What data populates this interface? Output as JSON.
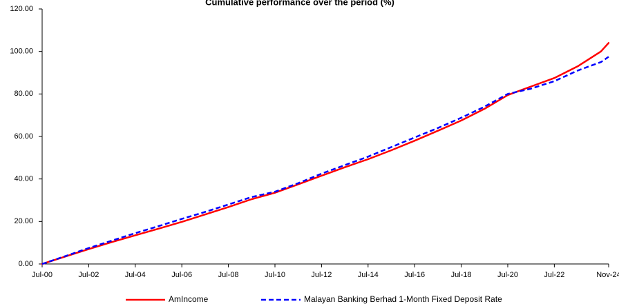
{
  "chart_data": {
    "type": "line",
    "title": "Cumulative performance over the period (%)",
    "xlabel": "",
    "ylabel": "",
    "x_tick_labels": [
      "Jul-00",
      "Jul-02",
      "Jul-04",
      "Jul-06",
      "Jul-08",
      "Jul-10",
      "Jul-12",
      "Jul-14",
      "Jul-16",
      "Jul-18",
      "Jul-20",
      "Jul-22",
      "Nov-24"
    ],
    "y_tick_labels": [
      "0.00",
      "20.00",
      "40.00",
      "60.00",
      "80.00",
      "100.00",
      "120.00"
    ],
    "y_ticks": [
      0,
      20,
      40,
      60,
      80,
      100,
      120
    ],
    "ylim": [
      0,
      120
    ],
    "xlim": [
      "Jul-00",
      "Nov-24"
    ],
    "grid": false,
    "legend_position": "bottom",
    "x": [
      "Jul-00",
      "Jul-01",
      "Jul-02",
      "Jul-03",
      "Jul-04",
      "Jul-05",
      "Jul-06",
      "Jul-07",
      "Jul-08",
      "Jul-09",
      "Jul-10",
      "Jul-11",
      "Jul-12",
      "Jul-13",
      "Jul-14",
      "Jul-15",
      "Jul-16",
      "Jul-17",
      "Jul-18",
      "Jul-19",
      "Jul-20",
      "Jul-21",
      "Jul-22",
      "Jul-23",
      "Jul-24",
      "Nov-24"
    ],
    "series": [
      {
        "name": "AmIncome",
        "color": "#ff0000",
        "line_style": "solid",
        "values": [
          0,
          3.5,
          7.0,
          10.3,
          13.5,
          16.6,
          19.8,
          23.3,
          26.8,
          30.5,
          33.5,
          37.5,
          41.5,
          45.5,
          49.3,
          53.5,
          58.0,
          62.7,
          67.5,
          73.0,
          79.5,
          83.5,
          87.5,
          93.0,
          100.0,
          104.0
        ]
      },
      {
        "name": "Malayan Banking Berhad 1-Month Fixed Deposit Rate",
        "color": "#0000ff",
        "line_style": "dashed",
        "values": [
          0,
          3.7,
          7.5,
          11.0,
          14.5,
          17.8,
          21.2,
          24.5,
          28.0,
          31.5,
          34.0,
          38.0,
          42.5,
          46.5,
          50.5,
          55.0,
          59.5,
          64.0,
          68.8,
          74.0,
          80.0,
          82.5,
          86.0,
          91.0,
          95.0,
          97.5
        ]
      }
    ]
  }
}
